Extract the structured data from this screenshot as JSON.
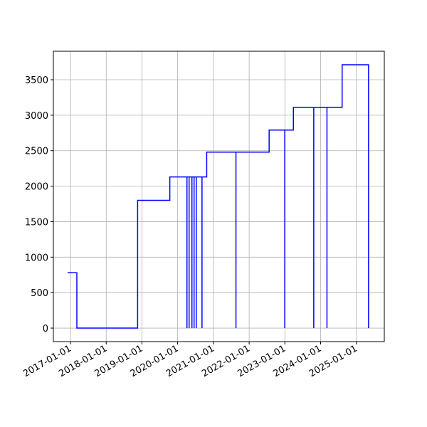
{
  "chart_data": {
    "type": "line",
    "x": [
      "2016-12-03",
      "2017-03-07",
      "2017-03-07",
      "2018-11-18",
      "2018-11-18",
      "2019-10-13",
      "2019-10-13",
      "2020-04-05",
      "2020-04-05",
      "2020-04-05",
      "2020-04-27",
      "2020-04-27",
      "2020-04-27",
      "2020-05-26",
      "2020-05-26",
      "2020-05-26",
      "2020-06-17",
      "2020-06-17",
      "2020-06-17",
      "2020-07-09",
      "2020-07-09",
      "2020-07-09",
      "2020-09-06",
      "2020-09-06",
      "2020-09-06",
      "2020-10-24",
      "2020-10-24",
      "2021-08-19",
      "2021-08-19",
      "2021-08-19",
      "2022-07-24",
      "2022-07-24",
      "2022-12-31",
      "2022-12-31",
      "2022-12-31",
      "2023-03-29",
      "2023-03-29",
      "2023-10-23",
      "2023-10-23",
      "2023-10-23",
      "2024-03-06",
      "2024-03-06",
      "2024-03-06",
      "2024-08-08",
      "2024-08-08",
      "2025-05-05",
      "2025-05-05"
    ],
    "series": [
      {
        "color": "blue",
        "values": [
          780,
          780,
          0,
          0,
          1800,
          1800,
          2130,
          2130,
          0,
          2130,
          2130,
          0,
          2130,
          2130,
          0,
          2130,
          2130,
          0,
          2130,
          2130,
          0,
          2130,
          2130,
          0,
          2130,
          2130,
          2480,
          2480,
          0,
          2480,
          2480,
          2790,
          2790,
          0,
          2790,
          2790,
          3110,
          3110,
          0,
          3110,
          3110,
          0,
          3110,
          3110,
          3710,
          3710,
          0
        ]
      }
    ],
    "xlim": [
      "2016-07-10",
      "2025-10-13"
    ],
    "xticks": [
      "2017-01-01",
      "2018-01-01",
      "2019-01-01",
      "2020-01-01",
      "2021-01-01",
      "2022-01-01",
      "2023-01-01",
      "2024-01-01",
      "2025-01-01"
    ],
    "ylim": [
      -190,
      3901
    ],
    "yticks": [
      0,
      500,
      1000,
      1500,
      2000,
      2500,
      3000,
      3500
    ],
    "grid": true
  }
}
